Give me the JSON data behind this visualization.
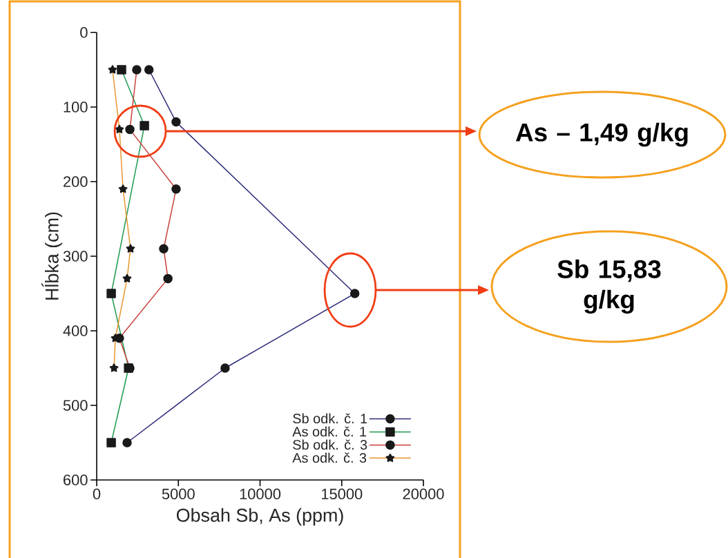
{
  "chart_data": {
    "type": "line",
    "xlabel": "Obsah Sb, As (ppm)",
    "ylabel": "Hĺbka (cm)",
    "xlim": [
      0,
      20000
    ],
    "ylim": [
      600,
      0
    ],
    "xticks": [
      0,
      5000,
      10000,
      15000,
      20000
    ],
    "yticks": [
      0,
      100,
      200,
      300,
      400,
      500,
      600
    ],
    "grid": false,
    "legend": "bottom right",
    "series": [
      {
        "name": "Sb odk. č. 1",
        "color": "#2b2a7a",
        "marker": "circle",
        "x": [
          3200,
          4860,
          15800,
          7860,
          1860
        ],
        "values": [
          50,
          120,
          350,
          450,
          550
        ]
      },
      {
        "name": "As odk. č. 1",
        "color": "#1f9a50",
        "marker": "square",
        "x": [
          1520,
          2920,
          890,
          1950,
          890
        ],
        "values": [
          50,
          125,
          350,
          450,
          550
        ]
      },
      {
        "name": "Sb odk. č. 3",
        "color": "#c8403a",
        "marker": "circle",
        "x": [
          2450,
          2030,
          4860,
          4100,
          4360,
          1390,
          2030
        ],
        "values": [
          50,
          130,
          210,
          290,
          330,
          410,
          450
        ]
      },
      {
        "name": "As odk. č. 3",
        "color": "#e8962e",
        "marker": "star",
        "x": [
          970,
          1390,
          1610,
          2070,
          1860,
          1140,
          1060
        ],
        "values": [
          50,
          130,
          210,
          290,
          330,
          410,
          450
        ]
      }
    ],
    "annotations": [
      "As – 1,49 g/kg",
      "Sb 15,83 g/kg"
    ]
  }
}
